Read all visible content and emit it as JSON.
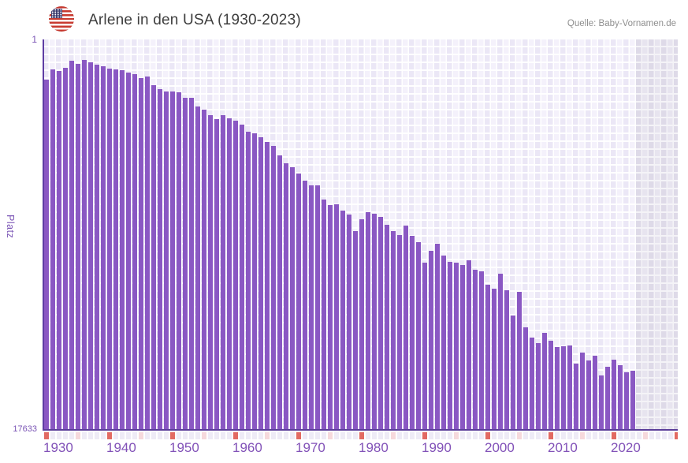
{
  "header": {
    "title": "Arlene in den USA (1930-2023)",
    "source": "Quelle: Baby-Vornamen.de",
    "flag_icon": "us-flag-icon"
  },
  "chart_data": {
    "type": "bar",
    "title": "Arlene in den USA (1930-2023)",
    "ylabel": "Platz",
    "xlabel": "",
    "legend": "none",
    "grid": true,
    "y_axis": {
      "min": 1,
      "max": 17633,
      "inverted": true,
      "top_label": "1",
      "bottom_label": "17633"
    },
    "x_ticks": [
      1930,
      1940,
      1950,
      1960,
      1970,
      1980,
      1990,
      2000,
      2010,
      2020
    ],
    "years": [
      1930,
      1931,
      1932,
      1933,
      1934,
      1935,
      1936,
      1937,
      1938,
      1939,
      1940,
      1941,
      1942,
      1943,
      1944,
      1945,
      1946,
      1947,
      1948,
      1949,
      1950,
      1951,
      1952,
      1953,
      1954,
      1955,
      1956,
      1957,
      1958,
      1959,
      1960,
      1961,
      1962,
      1963,
      1964,
      1965,
      1966,
      1967,
      1968,
      1969,
      1970,
      1971,
      1972,
      1973,
      1974,
      1975,
      1976,
      1977,
      1978,
      1979,
      1980,
      1981,
      1982,
      1983,
      1984,
      1985,
      1986,
      1987,
      1988,
      1989,
      1990,
      1991,
      1992,
      1993,
      1994,
      1995,
      1996,
      1997,
      1998,
      1999,
      2000,
      2001,
      2002,
      2003,
      2004,
      2005,
      2006,
      2007,
      2008,
      2009,
      2010,
      2011,
      2012,
      2013,
      2014,
      2015,
      2016,
      2017,
      2018,
      2019,
      2020,
      2021,
      2022,
      2023
    ],
    "ranks": [
      1820,
      1350,
      1430,
      1280,
      960,
      1100,
      930,
      1030,
      1140,
      1210,
      1320,
      1350,
      1390,
      1500,
      1570,
      1750,
      1690,
      2070,
      2240,
      2350,
      2350,
      2390,
      2640,
      2640,
      3030,
      3170,
      3420,
      3600,
      3420,
      3560,
      3670,
      3850,
      4170,
      4240,
      4420,
      4630,
      4810,
      5240,
      5590,
      5770,
      6060,
      6380,
      6590,
      6590,
      7230,
      7480,
      7450,
      7730,
      7910,
      8660,
      8120,
      7800,
      7870,
      8020,
      8370,
      8660,
      8830,
      8410,
      8870,
      9150,
      10080,
      9550,
      9230,
      9760,
      10050,
      10080,
      10190,
      9970,
      10400,
      10470,
      11080,
      11260,
      10580,
      11330,
      12470,
      11400,
      13000,
      13460,
      13710,
      13250,
      13610,
      13890,
      13860,
      13820,
      14640,
      14140,
      14500,
      14280,
      15170,
      14780,
      14460,
      14710,
      15030,
      14960
    ],
    "marker_strip": {
      "red_rule_years_ending_in": 0,
      "pink_rule_years_ending_in": 5
    },
    "colors": {
      "bar": "#8a58c3",
      "axis": "#5b3e99",
      "tick_label": "#8252b8",
      "strip_red": "#e26a62",
      "strip_pink": "#f6d9dc",
      "strip_base": "#eeebf6"
    }
  }
}
